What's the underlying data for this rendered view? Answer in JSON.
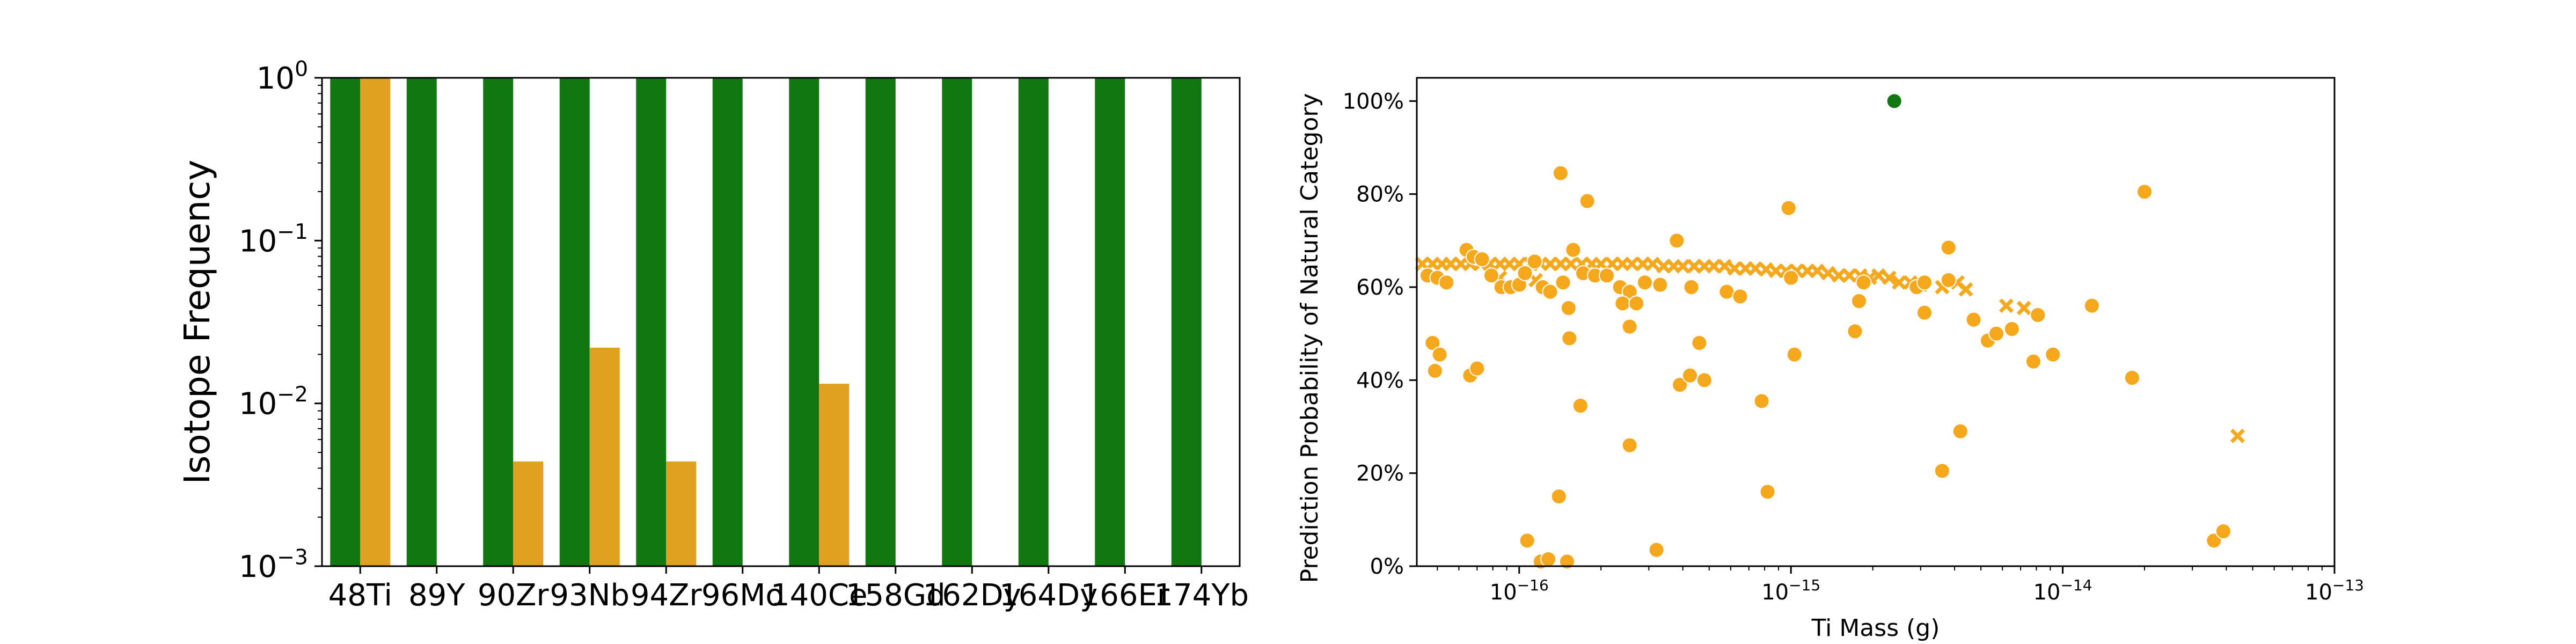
{
  "chart_data": [
    {
      "type": "bar",
      "title": "",
      "xlabel": "",
      "ylabel": "Isotope Frequency",
      "yscale": "log",
      "ylim": [
        0.001,
        1
      ],
      "yticks": [
        {
          "value": 0.001,
          "base": "10",
          "exp": "−3"
        },
        {
          "value": 0.01,
          "base": "10",
          "exp": "−2"
        },
        {
          "value": 0.1,
          "base": "10",
          "exp": "−1"
        },
        {
          "value": 1,
          "base": "10",
          "exp": "0"
        }
      ],
      "categories": [
        "48Ti",
        "89Y",
        "90Zr",
        "93Nb",
        "94Zr",
        "96Mo",
        "140Ce",
        "158Gd",
        "162Dy",
        "164Dy",
        "166Er",
        "174Yb"
      ],
      "series": [
        {
          "color": "#117711",
          "values": [
            1,
            1,
            1,
            1,
            1,
            1,
            1,
            1,
            1,
            1,
            1,
            1
          ]
        },
        {
          "color": "#e0a020",
          "values": [
            1,
            0,
            0.0044,
            0.022,
            0.0044,
            0,
            0.0132,
            0,
            0,
            0,
            0,
            0
          ]
        }
      ],
      "grid": false,
      "legend": "none"
    },
    {
      "type": "scatter",
      "title": "",
      "xlabel": "Ti Mass (g)",
      "ylabel": "Prediction Probability of Natural Category",
      "xscale": "log",
      "xlim": [
        4.2e-17,
        1e-13
      ],
      "ylim": [
        0,
        1.05
      ],
      "xticks": [
        {
          "value": 1e-16,
          "base": "10",
          "exp": "−16"
        },
        {
          "value": 1e-15,
          "base": "10",
          "exp": "−15"
        },
        {
          "value": 1e-14,
          "base": "10",
          "exp": "−14"
        },
        {
          "value": 1e-13,
          "base": "10",
          "exp": "−13"
        }
      ],
      "yticks": [
        {
          "value": 0,
          "label": "0%"
        },
        {
          "value": 0.2,
          "label": "20%"
        },
        {
          "value": 0.4,
          "label": "40%"
        },
        {
          "value": 0.6,
          "label": "60%"
        },
        {
          "value": 0.8,
          "label": "80%"
        },
        {
          "value": 1.0,
          "label": "100%"
        }
      ],
      "grid": false,
      "legend": "none",
      "series": [
        {
          "color": "#117711",
          "marker": "circle",
          "points": [
            [
              2.4e-15,
              1.0
            ]
          ]
        },
        {
          "color": "#f5a81c",
          "marker": "x",
          "points": [
            [
              4.4e-17,
              0.65
            ],
            [
              4.8e-17,
              0.65
            ],
            [
              5.2e-17,
              0.65
            ],
            [
              5.6e-17,
              0.65
            ],
            [
              6.1e-17,
              0.65
            ],
            [
              6.6e-17,
              0.65
            ],
            [
              7.2e-17,
              0.65
            ],
            [
              7.8e-17,
              0.65
            ],
            [
              8.5e-17,
              0.65
            ],
            [
              9.2e-17,
              0.65
            ],
            [
              1e-16,
              0.65
            ],
            [
              1.1e-16,
              0.65
            ],
            [
              1.2e-16,
              0.65
            ],
            [
              1.3e-16,
              0.65
            ],
            [
              1.42e-16,
              0.65
            ],
            [
              1.55e-16,
              0.65
            ],
            [
              1.7e-16,
              0.65
            ],
            [
              1.85e-16,
              0.65
            ],
            [
              2e-16,
              0.65
            ],
            [
              2.2e-16,
              0.65
            ],
            [
              2.4e-16,
              0.65
            ],
            [
              2.6e-16,
              0.65
            ],
            [
              2.85e-16,
              0.65
            ],
            [
              3.1e-16,
              0.65
            ],
            [
              3.4e-16,
              0.645
            ],
            [
              3.7e-16,
              0.645
            ],
            [
              4e-16,
              0.645
            ],
            [
              4.4e-16,
              0.645
            ],
            [
              4.8e-16,
              0.645
            ],
            [
              5.2e-16,
              0.645
            ],
            [
              5.7e-16,
              0.645
            ],
            [
              6.2e-16,
              0.64
            ],
            [
              6.8e-16,
              0.64
            ],
            [
              7.4e-16,
              0.64
            ],
            [
              8.1e-16,
              0.638
            ],
            [
              8.8e-16,
              0.635
            ],
            [
              9.6e-16,
              0.635
            ],
            [
              1.05e-15,
              0.635
            ],
            [
              1.15e-15,
              0.635
            ],
            [
              1.25e-15,
              0.635
            ],
            [
              1.37e-15,
              0.63
            ],
            [
              1.5e-15,
              0.625
            ],
            [
              1.64e-15,
              0.625
            ],
            [
              1.8e-15,
              0.625
            ],
            [
              1.95e-15,
              0.62
            ],
            [
              2.1e-15,
              0.625
            ],
            [
              2.3e-15,
              0.62
            ],
            [
              2.5e-15,
              0.61
            ],
            [
              2.75e-15,
              0.61
            ],
            [
              3e-15,
              0.605
            ],
            [
              3.6e-15,
              0.6
            ],
            [
              4.1e-15,
              0.61
            ],
            [
              4.4e-15,
              0.595
            ],
            [
              6.2e-15,
              0.56
            ],
            [
              7.2e-15,
              0.555
            ],
            [
              4.4e-14,
              0.28
            ],
            [
              8.5e-17,
              0.62
            ],
            [
              1.15e-16,
              0.615
            ]
          ]
        },
        {
          "color": "#f5a81c",
          "marker": "circle",
          "points": [
            [
              4.6e-17,
              0.625
            ],
            [
              5e-17,
              0.62
            ],
            [
              5.4e-17,
              0.61
            ],
            [
              6.4e-17,
              0.68
            ],
            [
              6.8e-17,
              0.665
            ],
            [
              7.3e-17,
              0.66
            ],
            [
              7.9e-17,
              0.625
            ],
            [
              8.6e-17,
              0.6
            ],
            [
              9.3e-17,
              0.6
            ],
            [
              1e-16,
              0.605
            ],
            [
              1.05e-16,
              0.63
            ],
            [
              1.14e-16,
              0.655
            ],
            [
              1.22e-16,
              0.6
            ],
            [
              1.3e-16,
              0.59
            ],
            [
              1.45e-16,
              0.61
            ],
            [
              1.58e-16,
              0.68
            ],
            [
              1.72e-16,
              0.63
            ],
            [
              1.9e-16,
              0.625
            ],
            [
              2.1e-16,
              0.625
            ],
            [
              2.35e-16,
              0.6
            ],
            [
              2.55e-16,
              0.59
            ],
            [
              2.9e-16,
              0.61
            ],
            [
              3.3e-16,
              0.605
            ],
            [
              3.8e-16,
              0.7
            ],
            [
              4.3e-16,
              0.6
            ],
            [
              5.8e-16,
              0.59
            ],
            [
              6.5e-16,
              0.58
            ],
            [
              1e-15,
              0.62
            ],
            [
              1.78e-15,
              0.57
            ],
            [
              1.85e-15,
              0.61
            ],
            [
              2.9e-15,
              0.6
            ],
            [
              3.1e-15,
              0.61
            ],
            [
              3.8e-15,
              0.685
            ],
            [
              3.8e-15,
              0.615
            ],
            [
              4.8e-17,
              0.48
            ],
            [
              5.1e-17,
              0.455
            ],
            [
              4.9e-17,
              0.42
            ],
            [
              6.6e-17,
              0.41
            ],
            [
              7e-17,
              0.425
            ],
            [
              1.42e-16,
              0.845
            ],
            [
              1.78e-16,
              0.785
            ],
            [
              1.52e-16,
              0.555
            ],
            [
              1.53e-16,
              0.49
            ],
            [
              1.68e-16,
              0.345
            ],
            [
              2.4e-16,
              0.565
            ],
            [
              2.55e-16,
              0.515
            ],
            [
              2.7e-16,
              0.565
            ],
            [
              2.55e-16,
              0.26
            ],
            [
              3.9e-16,
              0.39
            ],
            [
              4.25e-16,
              0.41
            ],
            [
              4.6e-16,
              0.48
            ],
            [
              4.8e-16,
              0.4
            ],
            [
              7.8e-16,
              0.355
            ],
            [
              8.2e-16,
              0.16
            ],
            [
              9.8e-16,
              0.77
            ],
            [
              1.03e-15,
              0.455
            ],
            [
              1.72e-15,
              0.505
            ],
            [
              3.1e-15,
              0.545
            ],
            [
              4.2e-15,
              0.29
            ],
            [
              4.7e-15,
              0.53
            ],
            [
              5.3e-15,
              0.485
            ],
            [
              5.7e-15,
              0.5
            ],
            [
              6.5e-15,
              0.51
            ],
            [
              7.8e-15,
              0.44
            ],
            [
              8.1e-15,
              0.54
            ],
            [
              9.2e-15,
              0.455
            ],
            [
              1.28e-14,
              0.56
            ],
            [
              1.8e-14,
              0.405
            ],
            [
              2e-14,
              0.805
            ],
            [
              3.6e-15,
              0.205
            ],
            [
              1.07e-16,
              0.055
            ],
            [
              1.2e-16,
              0.01
            ],
            [
              1.28e-16,
              0.015
            ],
            [
              1.4e-16,
              0.15
            ],
            [
              1.5e-16,
              0.01
            ],
            [
              3.2e-16,
              0.035
            ],
            [
              3.6e-14,
              0.055
            ],
            [
              3.9e-14,
              0.075
            ]
          ]
        }
      ]
    }
  ]
}
